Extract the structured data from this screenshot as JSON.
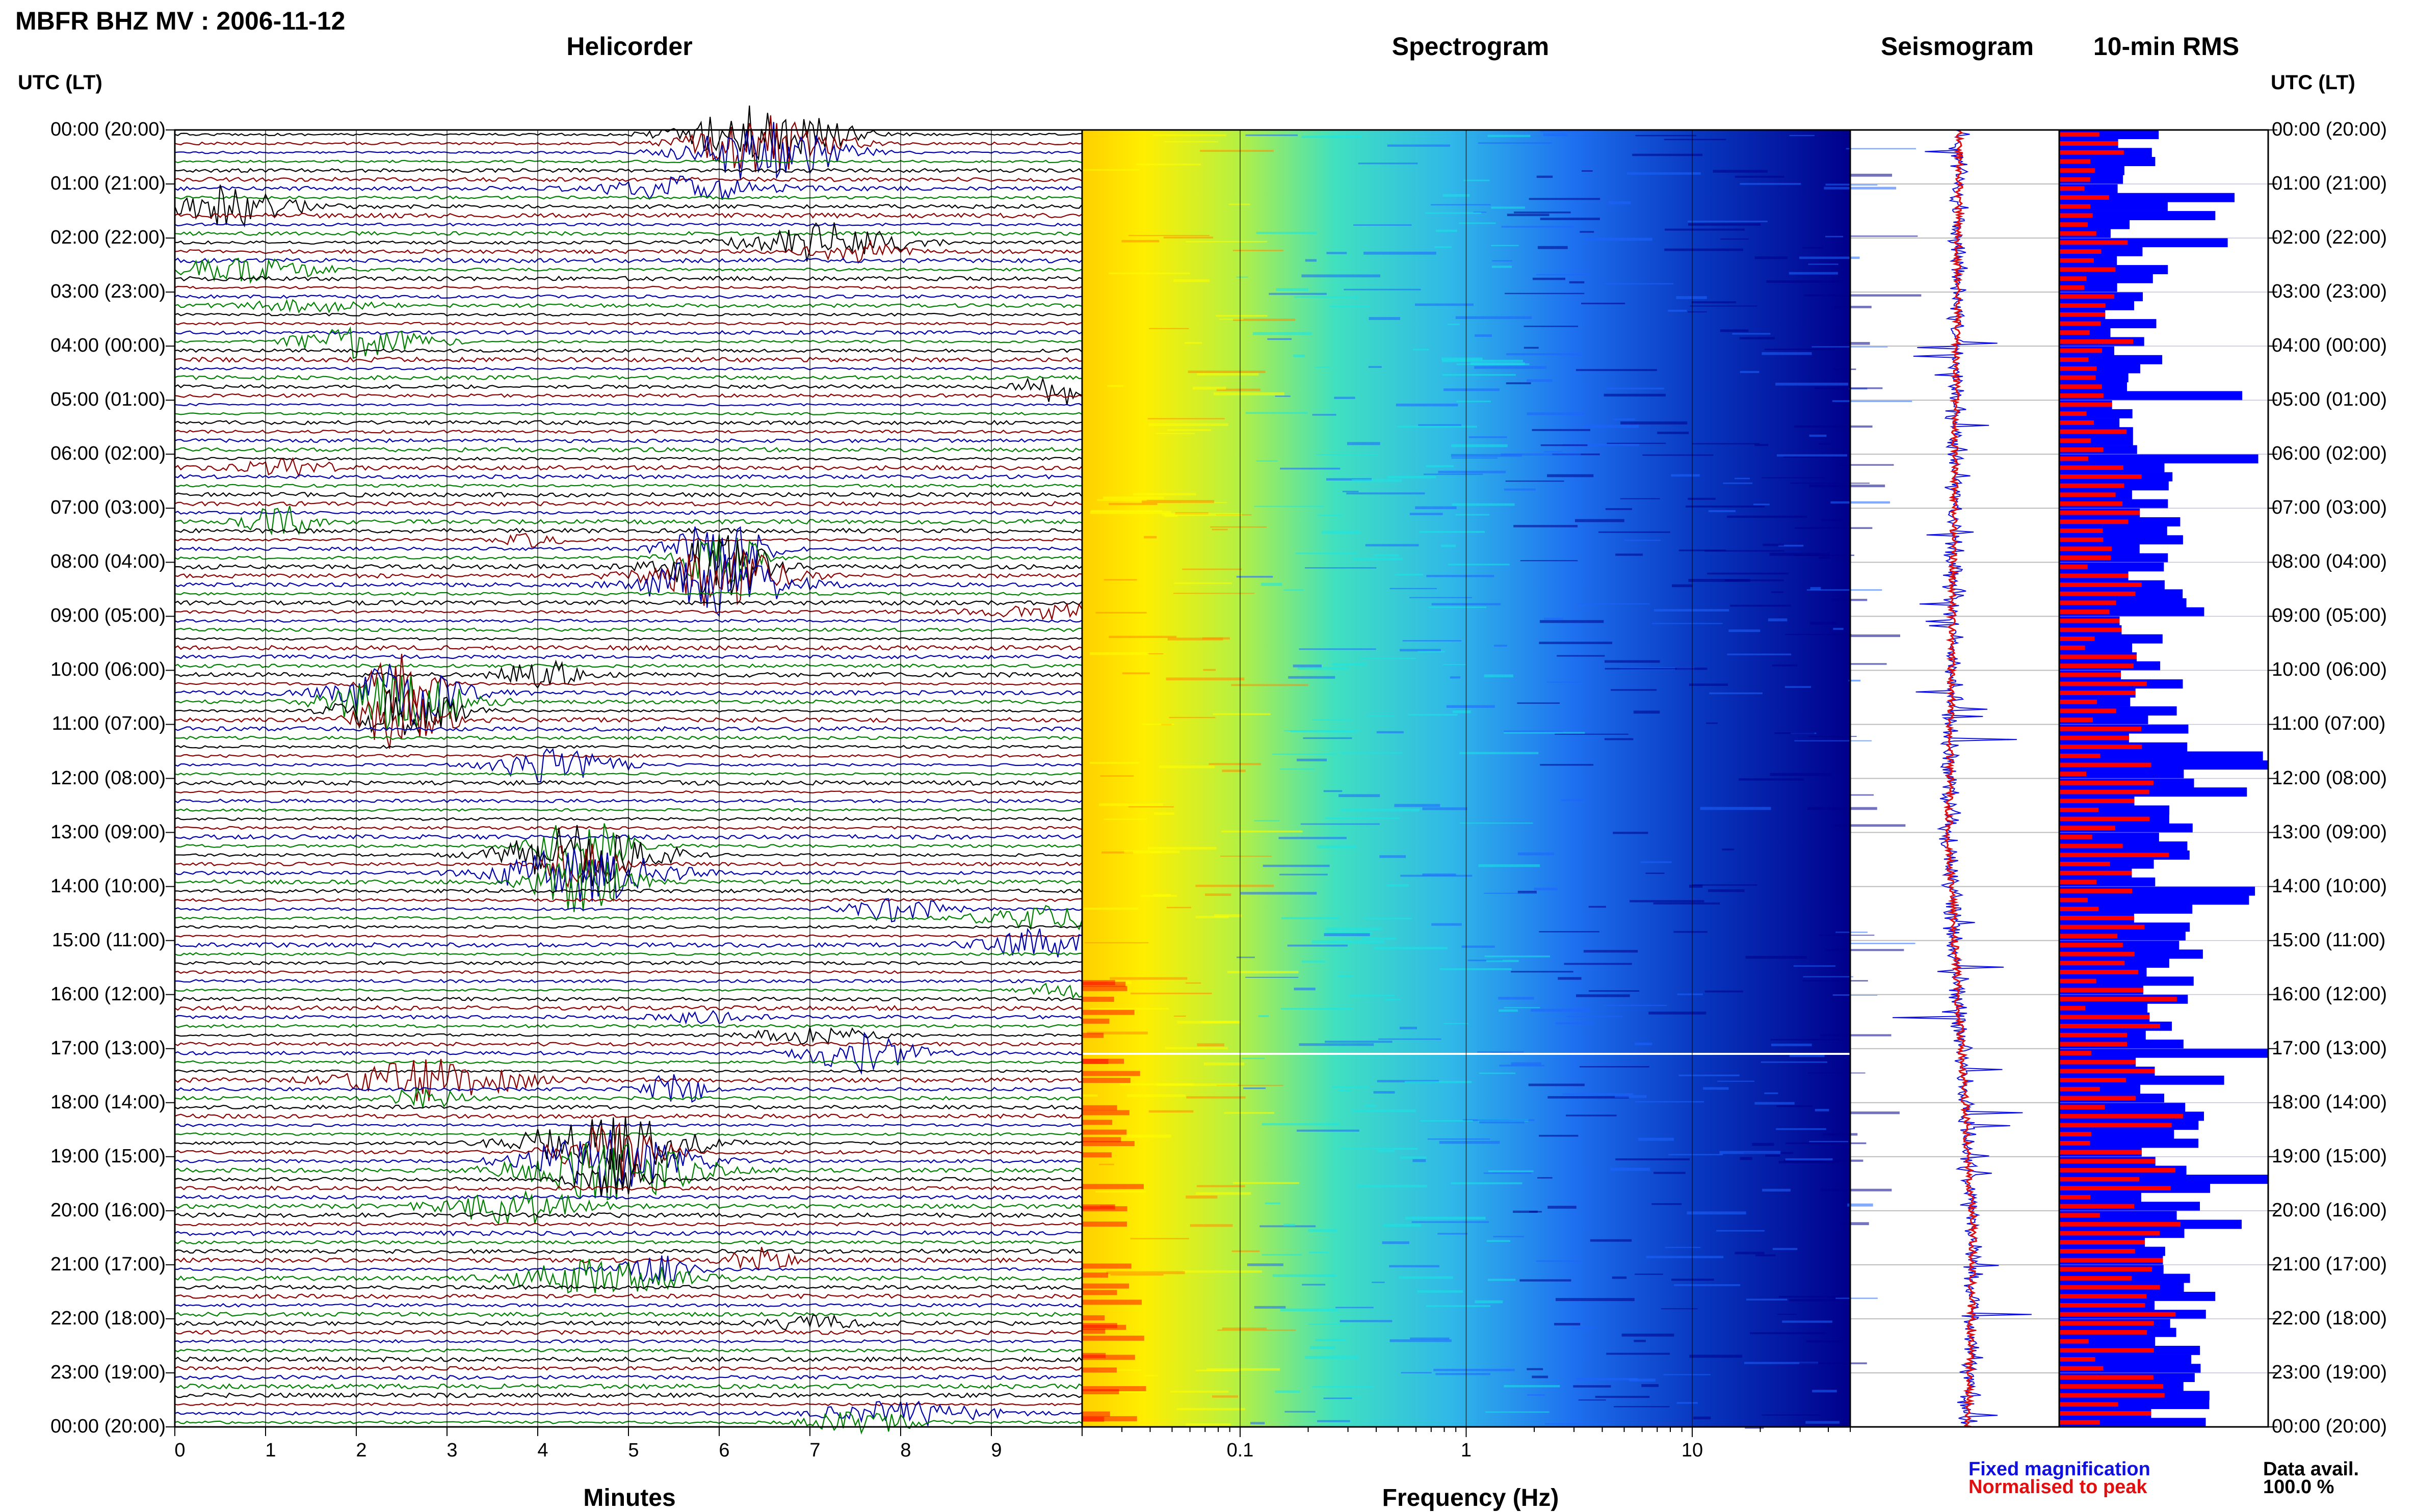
{
  "header": {
    "station_title": "MBFR BHZ MV : 2006-11-12"
  },
  "panels": {
    "helicorder": {
      "title": "Helicorder",
      "xlabel": "Minutes"
    },
    "spectrogram": {
      "title": "Spectrogram",
      "xlabel": "Frequency (Hz)"
    },
    "seismogram": {
      "title": "Seismogram"
    },
    "rms": {
      "title": "10-min RMS"
    }
  },
  "time_axis": {
    "left_header": "UTC (LT)",
    "right_header": "UTC (LT)",
    "labels": [
      "00:00 (20:00)",
      "01:00 (21:00)",
      "02:00 (22:00)",
      "03:00 (23:00)",
      "04:00 (00:00)",
      "05:00 (01:00)",
      "06:00 (02:00)",
      "07:00 (03:00)",
      "08:00 (04:00)",
      "09:00 (05:00)",
      "10:00 (06:00)",
      "11:00 (07:00)",
      "12:00 (08:00)",
      "13:00 (09:00)",
      "14:00 (10:00)",
      "15:00 (11:00)",
      "16:00 (12:00)",
      "17:00 (13:00)",
      "18:00 (14:00)",
      "19:00 (15:00)",
      "20:00 (16:00)",
      "21:00 (17:00)",
      "22:00 (18:00)",
      "23:00 (19:00)",
      "00:00 (20:00)"
    ]
  },
  "legend": {
    "fixed_label": "Fixed magnification",
    "normalised_label": "Normalised to peak",
    "fixed_color": "#1010e0",
    "normalised_color": "#e01010",
    "data_avail_label": "Data avail.",
    "data_avail_value": "100.0 %"
  },
  "chart_data": [
    {
      "type": "line",
      "panel": "helicorder",
      "xlabel": "Minutes",
      "x_ticks": [
        "0",
        "1",
        "2",
        "3",
        "4",
        "5",
        "6",
        "7",
        "8",
        "9"
      ],
      "xlim": [
        0,
        10
      ],
      "trace_colors": [
        "#000000",
        "#8b0000",
        "#0000aa",
        "#008000"
      ],
      "rows": 144,
      "notable_events": [
        {
          "hour": 0.0,
          "minute": 6.5,
          "color": "black",
          "amplitude": "large"
        },
        {
          "hour": 8.0,
          "minute": 6.0,
          "color": "black",
          "amplitude": "large"
        },
        {
          "hour": 10.5,
          "minute": 2.5,
          "color": "black",
          "amplitude": "large"
        },
        {
          "hour": 13.5,
          "minute": 4.5,
          "color": "darkred",
          "amplitude": "large"
        },
        {
          "hour": 19.0,
          "minute": 4.8,
          "color": "blue",
          "amplitude": "large"
        }
      ]
    },
    {
      "type": "heatmap",
      "panel": "spectrogram",
      "xlabel": "Frequency (Hz)",
      "x_scale": "log",
      "x_ticks": [
        "0.1",
        "1",
        "10"
      ],
      "xlim": [
        0.02,
        50
      ],
      "colormap": [
        "#00008b",
        "#1e64ff",
        "#19e6e6",
        "#ffff00",
        "#ff8c00",
        "#ff0000"
      ]
    },
    {
      "type": "line",
      "panel": "seismogram",
      "series": [
        {
          "name": "Fixed magnification",
          "color": "#1010e0"
        },
        {
          "name": "Normalised to peak",
          "color": "#e01010"
        }
      ]
    },
    {
      "type": "bar",
      "panel": "rms",
      "orientation": "horizontal",
      "series": [
        {
          "name": "Fixed magnification",
          "color": "#0000ff"
        },
        {
          "name": "Normalised to peak",
          "color": "#ff0000"
        }
      ],
      "bins": 144
    }
  ]
}
